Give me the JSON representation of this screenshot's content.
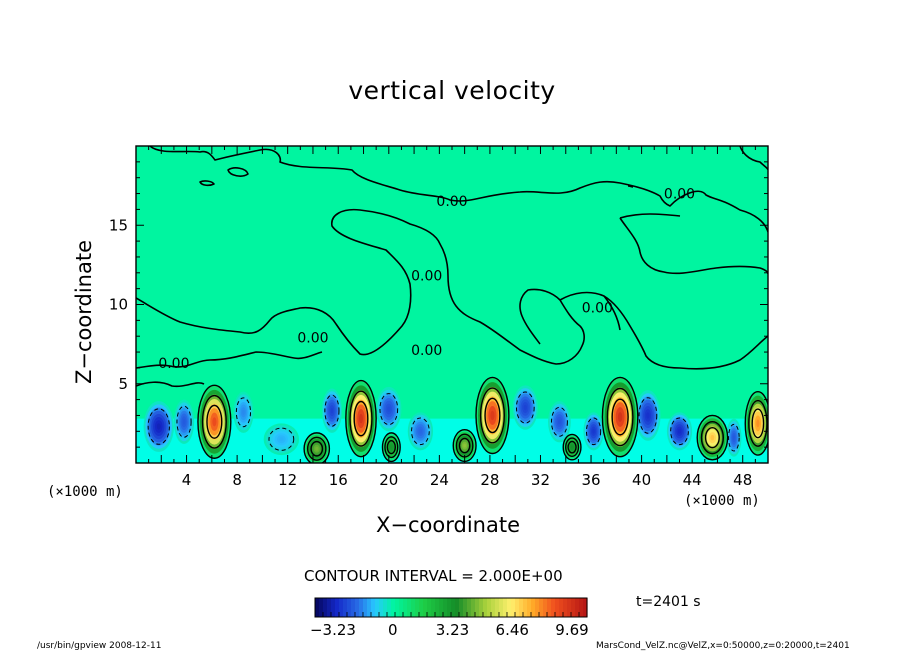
{
  "header": {
    "title": "vertical velocity"
  },
  "axes": {
    "xlabel": "X−coordinate",
    "ylabel": "Z−coordinate",
    "x_unit_left": "(×1000 m)",
    "x_unit_right": "(×1000 m)"
  },
  "annotations": {
    "contour_interval": "CONTOUR INTERVAL = 2.000E+00",
    "time": "t=2401 s",
    "footer_left": "/usr/bin/gpview  2008-12-11",
    "footer_right": "MarsCond_VelZ.nc@VelZ,x=0:50000,z=0:20000,t=2401"
  },
  "colors": {
    "background_field": "#00f5a0",
    "near_surface_field": "#00ffee",
    "contour_line": "#000000"
  },
  "chart_data": {
    "type": "heatmap",
    "title": "vertical velocity",
    "xlabel": "X−coordinate",
    "ylabel": "Z−coordinate",
    "xlim": [
      0,
      50
    ],
    "ylim": [
      0,
      20
    ],
    "x_ticks": [
      4,
      8,
      12,
      16,
      20,
      24,
      28,
      32,
      36,
      40,
      44,
      48
    ],
    "y_ticks": [
      5,
      10,
      15
    ],
    "contour_labels": [
      {
        "text": "0.00",
        "x": 25.0,
        "z": 16.2
      },
      {
        "text": "0.00",
        "x": 43.0,
        "z": 16.7
      },
      {
        "text": "0.00",
        "x": 23.0,
        "z": 11.5
      },
      {
        "text": "0.00",
        "x": 36.5,
        "z": 9.5
      },
      {
        "text": "0.00",
        "x": 14.0,
        "z": 7.6
      },
      {
        "text": "0.00",
        "x": 23.0,
        "z": 6.8
      },
      {
        "text": "0.00",
        "x": 3.0,
        "z": 6.0
      }
    ],
    "updrafts": [
      {
        "x": 6.2,
        "z": 2.6,
        "peak": 9.0,
        "wx": 1.3,
        "wz": 2.3
      },
      {
        "x": 17.8,
        "z": 2.8,
        "peak": 9.69,
        "wx": 1.2,
        "wz": 2.4
      },
      {
        "x": 28.2,
        "z": 3.0,
        "peak": 9.5,
        "wx": 1.3,
        "wz": 2.4
      },
      {
        "x": 38.3,
        "z": 2.9,
        "peak": 9.69,
        "wx": 1.4,
        "wz": 2.5
      },
      {
        "x": 45.6,
        "z": 1.6,
        "peak": 7.2,
        "wx": 1.2,
        "wz": 1.4
      },
      {
        "x": 49.2,
        "z": 2.5,
        "peak": 8.0,
        "wx": 1.0,
        "wz": 2.0
      },
      {
        "x": 14.3,
        "z": 0.9,
        "peak": 4.5,
        "wx": 1.0,
        "wz": 1.0
      },
      {
        "x": 20.2,
        "z": 1.0,
        "peak": 3.2,
        "wx": 0.7,
        "wz": 0.9
      },
      {
        "x": 26.0,
        "z": 1.1,
        "peak": 4.8,
        "wx": 0.9,
        "wz": 1.0
      },
      {
        "x": 34.5,
        "z": 1.0,
        "peak": 3.3,
        "wx": 0.7,
        "wz": 0.8
      }
    ],
    "downdrafts": [
      {
        "x": 1.8,
        "z": 2.3,
        "peak": -3.23,
        "wx": 1.2,
        "wz": 1.6
      },
      {
        "x": 3.8,
        "z": 2.6,
        "peak": -2.2,
        "wx": 0.8,
        "wz": 1.4
      },
      {
        "x": 8.5,
        "z": 3.2,
        "peak": -1.6,
        "wx": 0.8,
        "wz": 1.3
      },
      {
        "x": 11.5,
        "z": 1.5,
        "peak": -1.2,
        "wx": 1.4,
        "wz": 1.0
      },
      {
        "x": 15.5,
        "z": 3.3,
        "peak": -2.6,
        "wx": 0.8,
        "wz": 1.4
      },
      {
        "x": 20.0,
        "z": 3.4,
        "peak": -2.4,
        "wx": 1.0,
        "wz": 1.4
      },
      {
        "x": 22.5,
        "z": 2.0,
        "peak": -2.0,
        "wx": 1.0,
        "wz": 1.2
      },
      {
        "x": 30.8,
        "z": 3.5,
        "peak": -2.6,
        "wx": 1.0,
        "wz": 1.4
      },
      {
        "x": 33.5,
        "z": 2.6,
        "peak": -2.3,
        "wx": 0.9,
        "wz": 1.3
      },
      {
        "x": 36.2,
        "z": 2.0,
        "peak": -2.8,
        "wx": 0.8,
        "wz": 1.2
      },
      {
        "x": 40.5,
        "z": 3.0,
        "peak": -2.9,
        "wx": 1.0,
        "wz": 1.6
      },
      {
        "x": 43.0,
        "z": 2.0,
        "peak": -3.0,
        "wx": 1.0,
        "wz": 1.2
      },
      {
        "x": 47.3,
        "z": 1.6,
        "peak": -2.2,
        "wx": 0.6,
        "wz": 1.2
      }
    ],
    "colorbar": {
      "min": -4.2,
      "max": 10.5,
      "labels": [
        "−3.23",
        "0",
        "3.23",
        "6.46",
        "9.69"
      ],
      "values": [
        -3.23,
        0,
        3.23,
        6.46,
        9.69
      ]
    }
  }
}
